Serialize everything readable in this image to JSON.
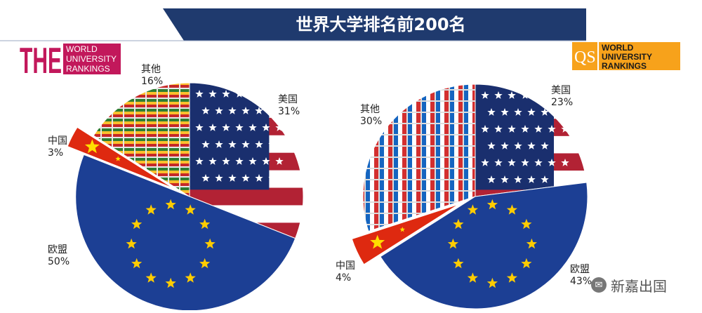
{
  "header": {
    "title": "世界大学排名前200名"
  },
  "logos": {
    "the": {
      "letters": "THE",
      "line1": "WORLD",
      "line2": "UNIVERSITY",
      "line3": "RANKINGS",
      "color": "#c2185b"
    },
    "qs": {
      "mark": "QS",
      "line1": "WORLD",
      "line2": "UNIVERSITY",
      "line3": "RANKINGS",
      "color": "#f7a21b"
    }
  },
  "colors": {
    "banner": "#1f3a6e",
    "us_red": "#b22234",
    "us_blue": "#1a2f6e",
    "eu_blue": "#1c3f94",
    "eu_star": "#ffcc00",
    "china_red": "#de2910",
    "china_star": "#ffde00"
  },
  "chart_data": [
    {
      "type": "pie",
      "source": "THE",
      "slices": [
        {
          "label": "美国",
          "value": 31,
          "value_label": "31%"
        },
        {
          "label": "欧盟",
          "value": 50,
          "value_label": "50%"
        },
        {
          "label": "中国",
          "value": 3,
          "value_label": "3%"
        },
        {
          "label": "其他",
          "value": 16,
          "value_label": "16%"
        }
      ]
    },
    {
      "type": "pie",
      "source": "QS",
      "slices": [
        {
          "label": "美国",
          "value": 23,
          "value_label": "23%"
        },
        {
          "label": "欧盟",
          "value": 43,
          "value_label": "43%"
        },
        {
          "label": "中国",
          "value": 4,
          "value_label": "4%"
        },
        {
          "label": "其他",
          "value": 30,
          "value_label": "30%"
        }
      ]
    }
  ],
  "watermark": {
    "text": "新嘉出国"
  }
}
